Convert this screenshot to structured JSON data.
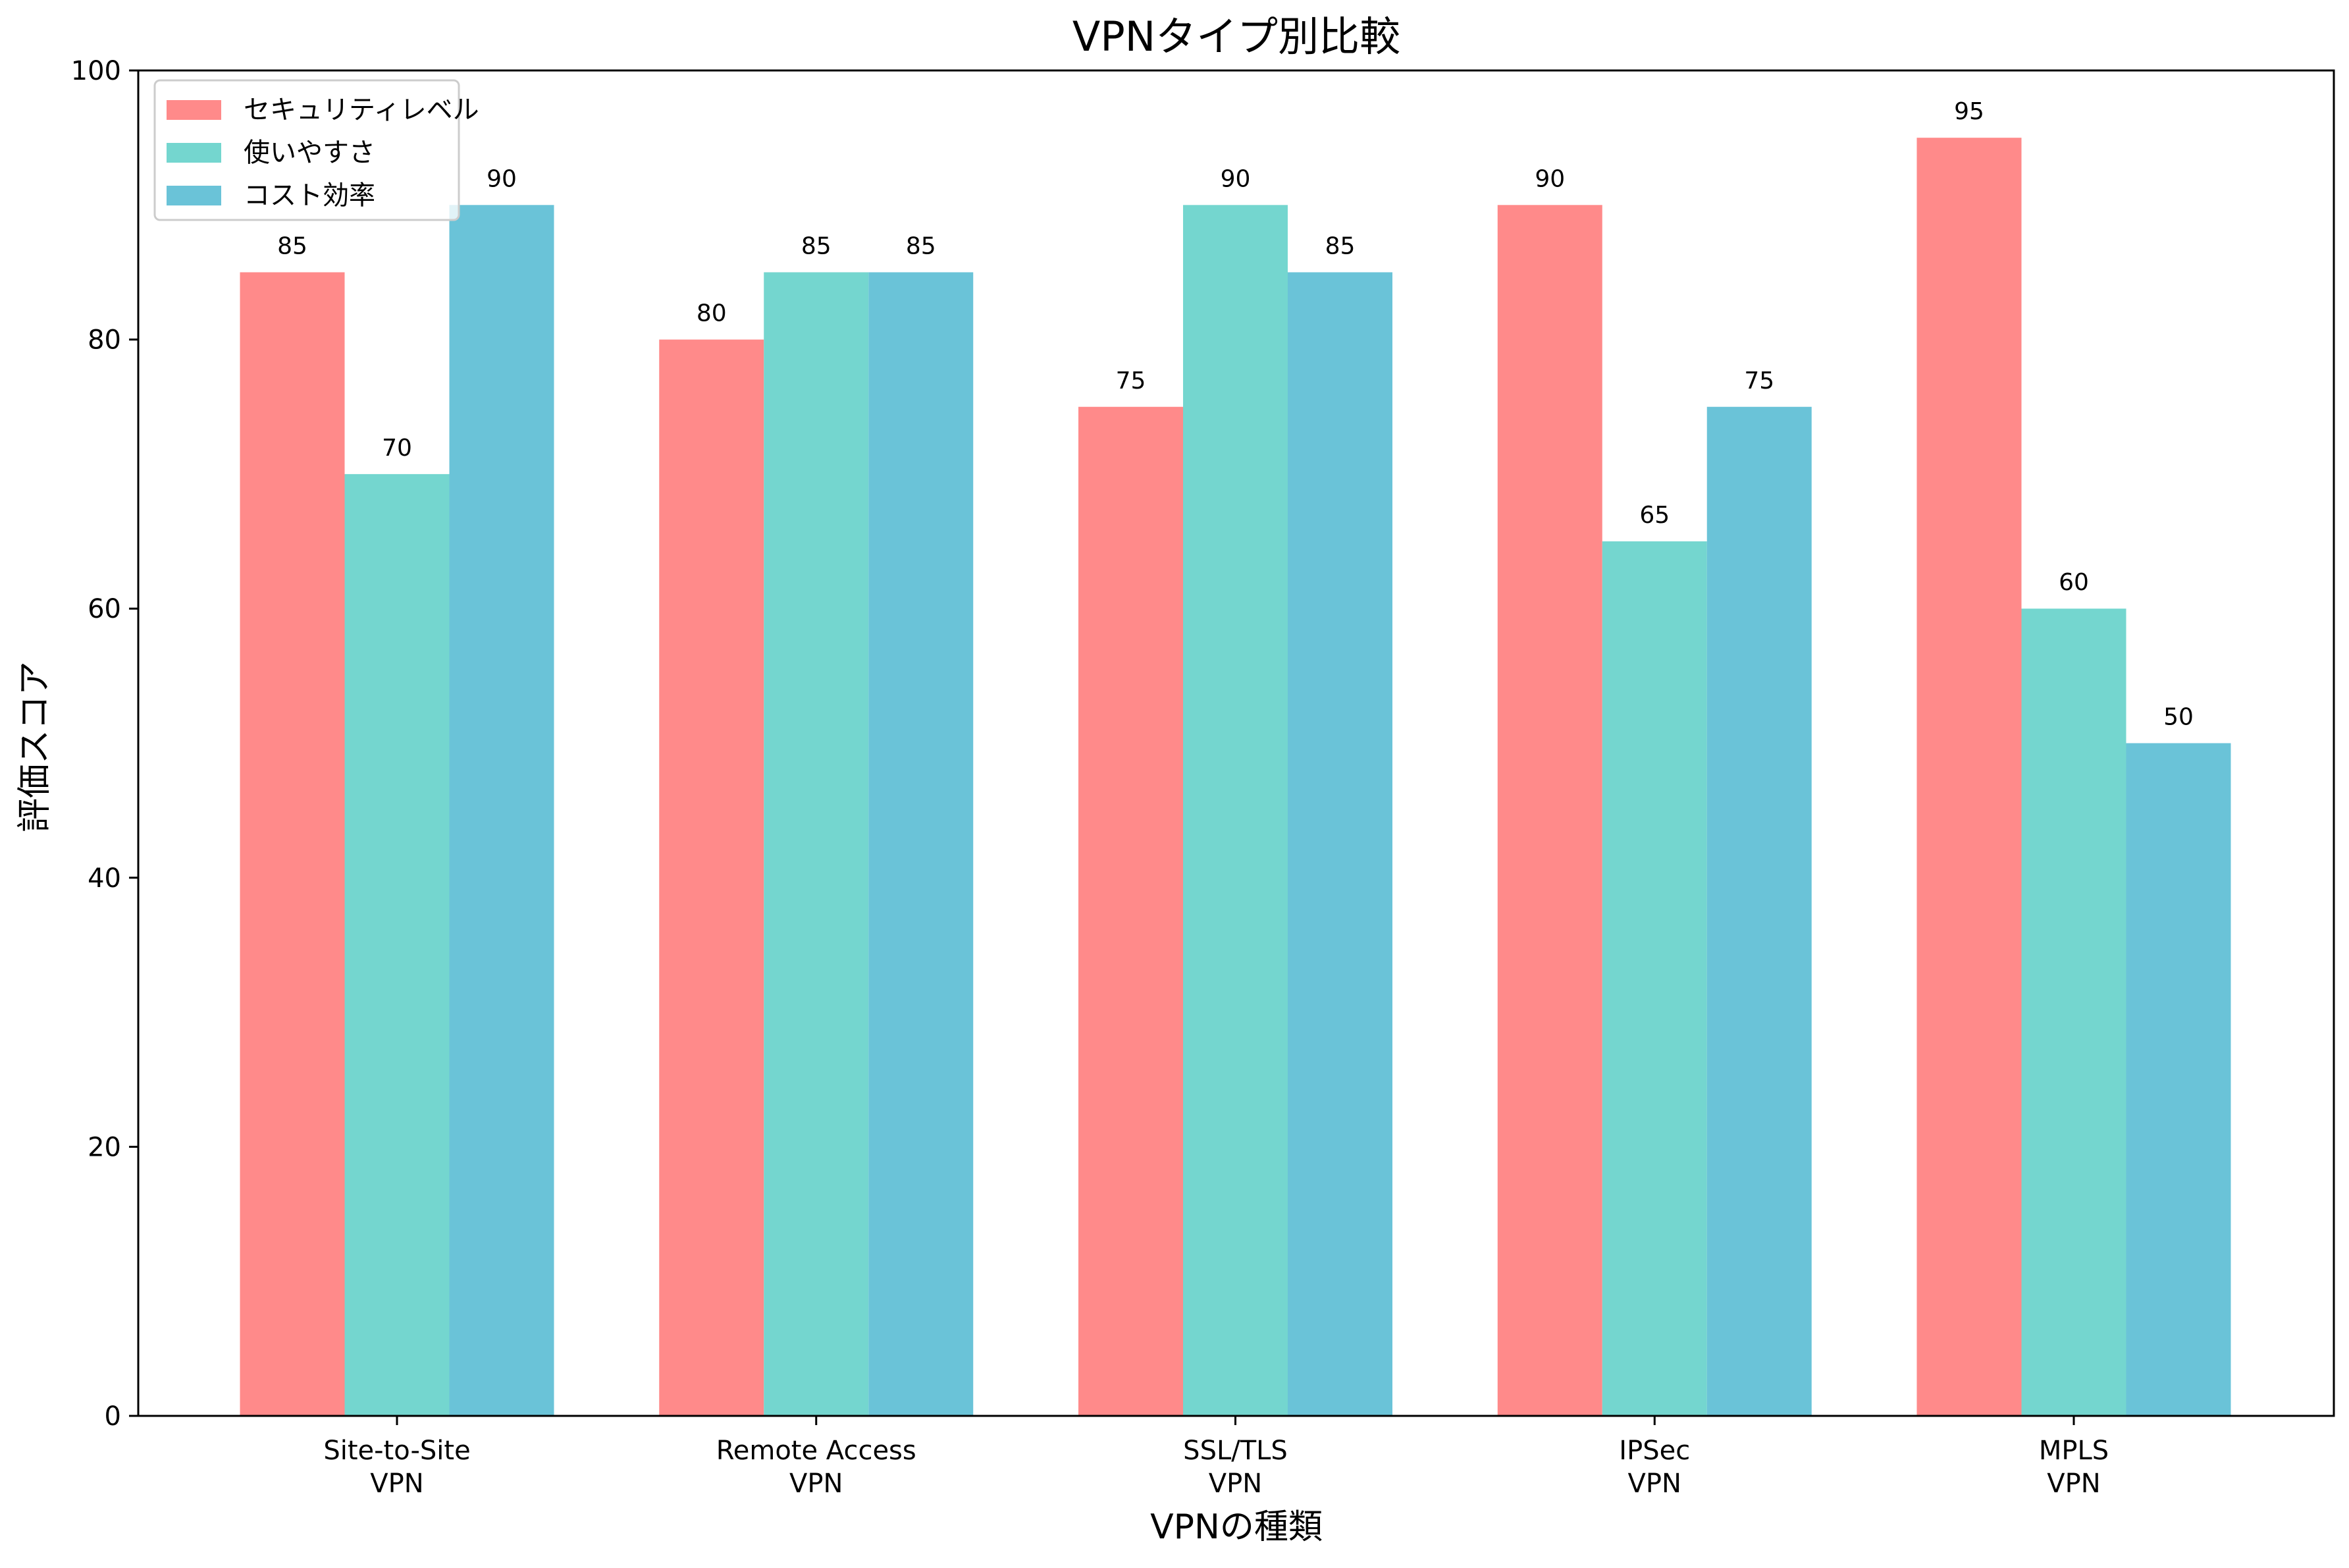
{
  "chart_data": {
    "type": "bar",
    "title": "VPNタイプ別比較",
    "xlabel": "VPNの種類",
    "ylabel": "評価スコア",
    "categories": [
      [
        "Site-to-Site",
        "VPN"
      ],
      [
        "Remote Access",
        "VPN"
      ],
      [
        "SSL/TLS",
        "VPN"
      ],
      [
        "IPSec",
        "VPN"
      ],
      [
        "MPLS",
        "VPN"
      ]
    ],
    "series": [
      {
        "name": "セキュリティレベル",
        "color": "#FF8A8A",
        "values": [
          85,
          80,
          75,
          90,
          95
        ]
      },
      {
        "name": "使いやすさ",
        "color": "#74D6CF",
        "values": [
          70,
          85,
          90,
          65,
          60
        ]
      },
      {
        "name": "コスト効率",
        "color": "#6AC3D8",
        "values": [
          90,
          85,
          85,
          75,
          50
        ]
      }
    ],
    "ylim": [
      0,
      100
    ],
    "yticks": [
      0,
      20,
      40,
      60,
      80,
      100
    ],
    "grid": false,
    "legend_position": "top-left"
  }
}
